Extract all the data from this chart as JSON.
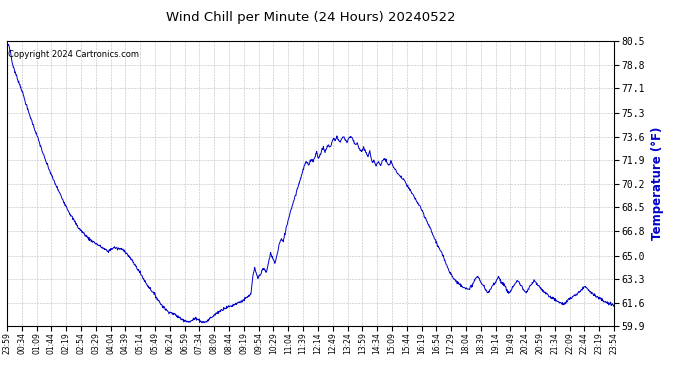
{
  "title": "Wind Chill per Minute (24 Hours) 20240522",
  "ylabel": "Temperature (°F)",
  "copyright_text": "Copyright 2024 Cartronics.com",
  "line_color": "#0000cc",
  "ylabel_color": "#0000cc",
  "background_color": "#ffffff",
  "grid_color": "#bbbbbb",
  "ylim": [
    59.9,
    80.5
  ],
  "yticks": [
    59.9,
    61.6,
    63.3,
    65.0,
    66.8,
    68.5,
    70.2,
    71.9,
    73.6,
    75.3,
    77.1,
    78.8,
    80.5
  ],
  "xtick_labels": [
    "23:59",
    "00:34",
    "01:09",
    "01:44",
    "02:19",
    "02:54",
    "03:29",
    "04:04",
    "04:39",
    "05:14",
    "05:49",
    "06:24",
    "06:59",
    "07:34",
    "08:09",
    "08:44",
    "09:19",
    "09:54",
    "10:29",
    "11:04",
    "11:39",
    "12:14",
    "12:49",
    "13:24",
    "13:59",
    "14:34",
    "15:09",
    "15:44",
    "16:19",
    "16:54",
    "17:29",
    "18:04",
    "18:39",
    "19:14",
    "19:49",
    "20:24",
    "20:59",
    "21:34",
    "22:09",
    "22:44",
    "23:19",
    "23:54"
  ],
  "waypoints": [
    [
      0,
      80.1
    ],
    [
      4,
      80.3
    ],
    [
      8,
      79.8
    ],
    [
      12,
      79.0
    ],
    [
      20,
      78.2
    ],
    [
      35,
      77.0
    ],
    [
      50,
      75.5
    ],
    [
      70,
      73.8
    ],
    [
      90,
      72.0
    ],
    [
      110,
      70.5
    ],
    [
      130,
      69.2
    ],
    [
      150,
      68.0
    ],
    [
      170,
      67.0
    ],
    [
      195,
      66.2
    ],
    [
      215,
      65.8
    ],
    [
      230,
      65.5
    ],
    [
      240,
      65.3
    ],
    [
      248,
      65.5
    ],
    [
      255,
      65.6
    ],
    [
      262,
      65.5
    ],
    [
      268,
      65.5
    ],
    [
      278,
      65.4
    ],
    [
      288,
      65.0
    ],
    [
      300,
      64.5
    ],
    [
      315,
      63.8
    ],
    [
      330,
      63.0
    ],
    [
      350,
      62.2
    ],
    [
      365,
      61.5
    ],
    [
      380,
      61.0
    ],
    [
      395,
      60.8
    ],
    [
      405,
      60.6
    ],
    [
      415,
      60.4
    ],
    [
      425,
      60.3
    ],
    [
      432,
      60.2
    ],
    [
      438,
      60.3
    ],
    [
      443,
      60.4
    ],
    [
      448,
      60.5
    ],
    [
      453,
      60.4
    ],
    [
      458,
      60.3
    ],
    [
      463,
      60.2
    ],
    [
      470,
      60.2
    ],
    [
      476,
      60.3
    ],
    [
      482,
      60.5
    ],
    [
      488,
      60.6
    ],
    [
      495,
      60.8
    ],
    [
      505,
      61.0
    ],
    [
      515,
      61.2
    ],
    [
      525,
      61.3
    ],
    [
      535,
      61.4
    ],
    [
      540,
      61.5
    ],
    [
      548,
      61.6
    ],
    [
      555,
      61.7
    ],
    [
      562,
      61.8
    ],
    [
      570,
      62.0
    ],
    [
      578,
      62.2
    ],
    [
      583,
      63.5
    ],
    [
      587,
      64.1
    ],
    [
      591,
      63.7
    ],
    [
      595,
      63.4
    ],
    [
      600,
      63.6
    ],
    [
      605,
      64.0
    ],
    [
      610,
      64.0
    ],
    [
      615,
      63.8
    ],
    [
      620,
      64.5
    ],
    [
      625,
      65.2
    ],
    [
      630,
      64.8
    ],
    [
      635,
      64.5
    ],
    [
      640,
      65.0
    ],
    [
      645,
      65.8
    ],
    [
      650,
      66.2
    ],
    [
      655,
      66.0
    ],
    [
      658,
      66.5
    ],
    [
      662,
      67.0
    ],
    [
      666,
      67.5
    ],
    [
      670,
      68.0
    ],
    [
      675,
      68.5
    ],
    [
      680,
      69.0
    ],
    [
      685,
      69.5
    ],
    [
      690,
      70.0
    ],
    [
      695,
      70.5
    ],
    [
      700,
      71.0
    ],
    [
      705,
      71.5
    ],
    [
      710,
      71.8
    ],
    [
      715,
      71.5
    ],
    [
      718,
      71.8
    ],
    [
      722,
      72.0
    ],
    [
      726,
      71.8
    ],
    [
      730,
      72.2
    ],
    [
      734,
      72.5
    ],
    [
      738,
      72.0
    ],
    [
      742,
      72.3
    ],
    [
      746,
      72.6
    ],
    [
      750,
      72.8
    ],
    [
      754,
      72.5
    ],
    [
      758,
      72.8
    ],
    [
      762,
      73.0
    ],
    [
      766,
      72.8
    ],
    [
      770,
      73.2
    ],
    [
      774,
      73.5
    ],
    [
      778,
      73.3
    ],
    [
      782,
      73.6
    ],
    [
      786,
      73.4
    ],
    [
      790,
      73.2
    ],
    [
      794,
      73.5
    ],
    [
      798,
      73.6
    ],
    [
      802,
      73.4
    ],
    [
      806,
      73.2
    ],
    [
      810,
      73.5
    ],
    [
      814,
      73.6
    ],
    [
      818,
      73.5
    ],
    [
      822,
      73.3
    ],
    [
      826,
      73.0
    ],
    [
      830,
      73.2
    ],
    [
      834,
      72.8
    ],
    [
      840,
      72.5
    ],
    [
      845,
      72.8
    ],
    [
      850,
      72.5
    ],
    [
      855,
      72.2
    ],
    [
      860,
      72.5
    ],
    [
      865,
      71.8
    ],
    [
      870,
      71.9
    ],
    [
      875,
      71.5
    ],
    [
      880,
      71.8
    ],
    [
      885,
      71.5
    ],
    [
      890,
      71.9
    ],
    [
      895,
      72.0
    ],
    [
      900,
      71.8
    ],
    [
      905,
      71.5
    ],
    [
      910,
      71.8
    ],
    [
      915,
      71.5
    ],
    [
      920,
      71.2
    ],
    [
      930,
      70.8
    ],
    [
      940,
      70.5
    ],
    [
      950,
      70.0
    ],
    [
      960,
      69.5
    ],
    [
      970,
      69.0
    ],
    [
      980,
      68.5
    ],
    [
      990,
      67.8
    ],
    [
      1000,
      67.2
    ],
    [
      1010,
      66.5
    ],
    [
      1020,
      65.8
    ],
    [
      1030,
      65.2
    ],
    [
      1040,
      64.5
    ],
    [
      1050,
      63.8
    ],
    [
      1060,
      63.3
    ],
    [
      1070,
      63.0
    ],
    [
      1080,
      62.8
    ],
    [
      1090,
      62.6
    ],
    [
      1095,
      62.5
    ],
    [
      1100,
      62.8
    ],
    [
      1105,
      63.0
    ],
    [
      1110,
      63.3
    ],
    [
      1115,
      63.5
    ],
    [
      1120,
      63.3
    ],
    [
      1125,
      63.0
    ],
    [
      1130,
      62.8
    ],
    [
      1135,
      62.5
    ],
    [
      1140,
      62.3
    ],
    [
      1145,
      62.5
    ],
    [
      1150,
      62.8
    ],
    [
      1155,
      63.0
    ],
    [
      1160,
      63.2
    ],
    [
      1165,
      63.5
    ],
    [
      1170,
      63.2
    ],
    [
      1175,
      63.0
    ],
    [
      1180,
      62.8
    ],
    [
      1185,
      62.5
    ],
    [
      1190,
      62.3
    ],
    [
      1195,
      62.5
    ],
    [
      1200,
      62.8
    ],
    [
      1205,
      63.0
    ],
    [
      1210,
      63.2
    ],
    [
      1215,
      63.0
    ],
    [
      1220,
      62.8
    ],
    [
      1225,
      62.5
    ],
    [
      1230,
      62.3
    ],
    [
      1235,
      62.5
    ],
    [
      1240,
      62.8
    ],
    [
      1245,
      63.0
    ],
    [
      1250,
      63.2
    ],
    [
      1255,
      63.0
    ],
    [
      1260,
      62.8
    ],
    [
      1270,
      62.5
    ],
    [
      1280,
      62.2
    ],
    [
      1290,
      62.0
    ],
    [
      1300,
      61.8
    ],
    [
      1310,
      61.6
    ],
    [
      1320,
      61.5
    ],
    [
      1330,
      61.8
    ],
    [
      1340,
      62.0
    ],
    [
      1350,
      62.2
    ],
    [
      1360,
      62.5
    ],
    [
      1370,
      62.8
    ],
    [
      1380,
      62.5
    ],
    [
      1390,
      62.2
    ],
    [
      1400,
      62.0
    ],
    [
      1410,
      61.8
    ],
    [
      1420,
      61.6
    ],
    [
      1430,
      61.5
    ],
    [
      1439,
      61.4
    ]
  ]
}
